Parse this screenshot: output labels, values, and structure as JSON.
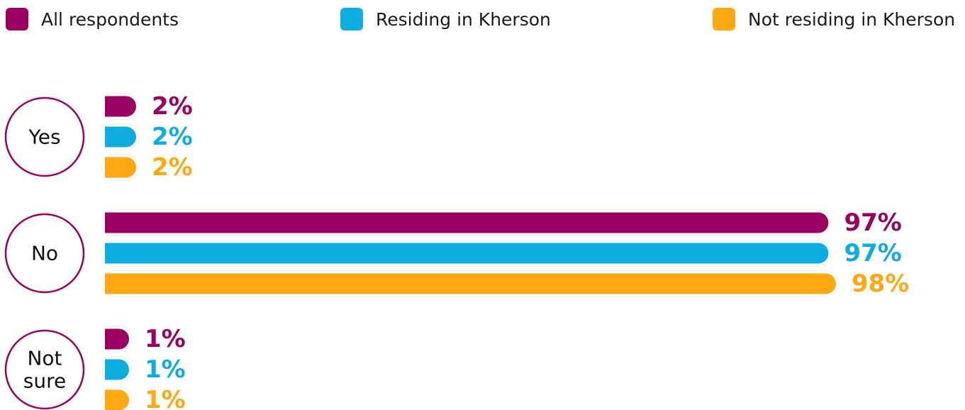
{
  "legend": [
    {
      "label": "All respondents",
      "color": "#990061"
    },
    {
      "label": "Residing in Kherson",
      "color": "#0DAEDF"
    },
    {
      "label": "Not residing in Kherson",
      "color": "#FFA812"
    }
  ],
  "chart_data": {
    "type": "bar",
    "orientation": "horizontal",
    "categories": [
      "Yes",
      "No",
      "Not sure"
    ],
    "series": [
      {
        "name": "All respondents",
        "color": "#990061",
        "values": [
          2,
          97,
          1
        ]
      },
      {
        "name": "Residing in Kherson",
        "color": "#0DAEDF",
        "values": [
          2,
          97,
          1
        ]
      },
      {
        "name": "Not residing in Kherson",
        "color": "#FFA812",
        "values": [
          2,
          98,
          1
        ]
      }
    ],
    "value_suffix": "%",
    "xlim": [
      0,
      100
    ],
    "legend_position": "top",
    "grid": false,
    "category_outline_color": "#990061"
  }
}
